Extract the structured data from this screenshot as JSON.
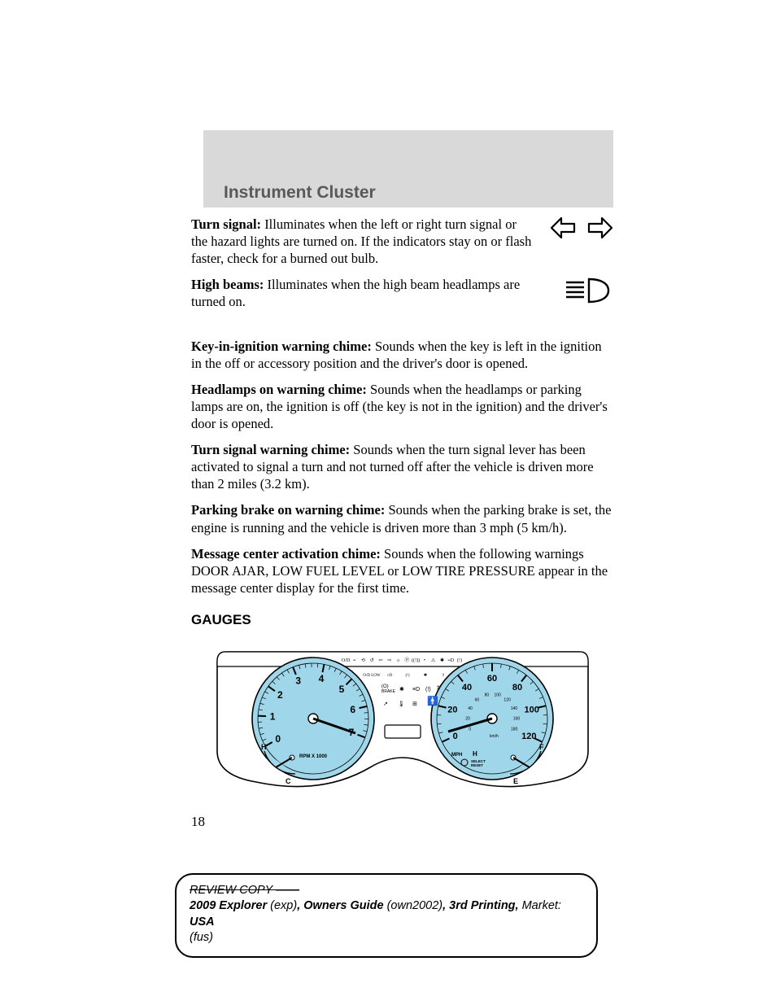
{
  "header": {
    "title": "Instrument Cluster"
  },
  "paragraphs": {
    "turn_signal": {
      "label": "Turn signal:",
      "text_a": " Illuminates when the left or right turn signal or the hazard lights are turned on. If the indicators stay on or flash faster, check for a burned out bulb."
    },
    "high_beams": {
      "label": "High beams:",
      "text": " Illuminates when the high beam headlamps are turned on."
    },
    "key_chime": {
      "label": "Key-in-ignition warning chime:",
      "text": " Sounds when the key is left in the ignition in the off or accessory position and the driver's door is opened."
    },
    "headlamps_chime": {
      "label": "Headlamps on warning chime:",
      "text": " Sounds when the headlamps or parking lamps are on, the ignition is off (the key is not in the ignition) and the driver's door is opened."
    },
    "turn_chime": {
      "label": "Turn signal warning chime:",
      "text": " Sounds when the turn signal lever has been activated to signal a turn and not turned off after the vehicle is driven more than 2 miles (3.2 km)."
    },
    "parking_chime": {
      "label": "Parking brake on warning chime:",
      "text": " Sounds when the parking brake is set, the engine is running and the vehicle is driven more than 3 mph (5 km/h)."
    },
    "message_chime": {
      "label": "Message center activation chime:",
      "text": " Sounds when the following warnings DOOR AJAR, LOW FUEL LEVEL or LOW TIRE PRESSURE appear in the message center display for the first time."
    }
  },
  "subheading": "GAUGES",
  "page_number": "18",
  "footer": {
    "line1": "REVIEW COPY ——",
    "l2a": "2009 Explorer",
    "l2b": " (exp)",
    "l2c": ", Owners Guide",
    "l2d": " (own2002)",
    "l2e": ", 3rd Printing,",
    "l2f": " Market: ",
    "l2g": "USA",
    "l3": "(fus)"
  },
  "gauges": {
    "type": "instrument-cluster",
    "background": "#ffffff",
    "gauge_fill": "#9fd6ea",
    "outline": "#000000",
    "tachometer": {
      "label": "RPM X 1000",
      "ticks": [
        "0",
        "1",
        "2",
        "3",
        "4",
        "5",
        "6",
        "7"
      ],
      "temp_gauge": {
        "top": "H",
        "bottom": "C"
      }
    },
    "speedometer": {
      "unit1": "MPH",
      "unit2": "km/h",
      "outer_ticks": [
        "0",
        "20",
        "40",
        "60",
        "80",
        "100",
        "120"
      ],
      "inner_ticks": [
        "0",
        "20",
        "40",
        "60",
        "80",
        "100",
        "120",
        "140",
        "160",
        "180"
      ],
      "select_label": "SELECT RESET",
      "fuel_gauge": {
        "top": "F",
        "bottom": "E"
      },
      "temp_letter": "H"
    },
    "indicator_icons_row": 14
  },
  "icons": {
    "turn_signal": "left-right-arrows",
    "high_beam": "high-beam-icon"
  }
}
